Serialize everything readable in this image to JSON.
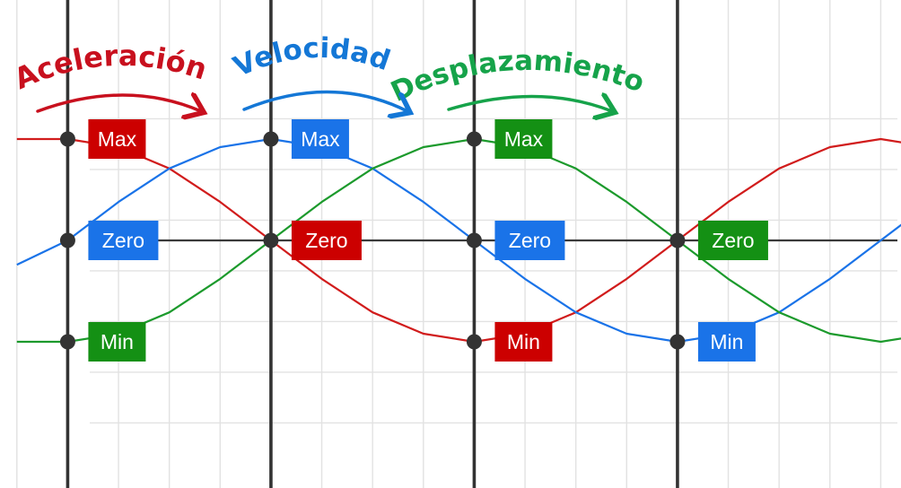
{
  "chart_data": {
    "type": "line",
    "title": "",
    "x_range": [
      0,
      6
    ],
    "y_range": [
      -1.8,
      1.4
    ],
    "grid": true,
    "headings": [
      {
        "text": "Aceleración",
        "color": "#c8101e"
      },
      {
        "text": "Velocidad",
        "color": "#1477d6"
      },
      {
        "text": "Desplazamiento",
        "color": "#16a34a"
      }
    ],
    "series": [
      {
        "key": "aceleracion",
        "color": "#d11c1c",
        "x": [
          0,
          0.25,
          0.5,
          0.75,
          1,
          1.25,
          1.5,
          1.75,
          2,
          2.25,
          2.5,
          2.75,
          3,
          3.25,
          3.5,
          3.75,
          4,
          4.25,
          4.5,
          4.75,
          5,
          5.25,
          5.5,
          5.75,
          6
        ],
        "y": [
          1,
          1,
          0.92,
          0.71,
          0.38,
          0,
          -0.38,
          -0.71,
          -0.92,
          -1,
          -0.92,
          -0.71,
          -0.38,
          0,
          0.38,
          0.71,
          0.92,
          1,
          0.92,
          0.71,
          0.38,
          0,
          -0.38,
          -0.71,
          -0.92
        ]
      },
      {
        "key": "velocidad",
        "color": "#1a73e8",
        "x": [
          0,
          0.25,
          0.5,
          0.75,
          1,
          1.25,
          1.5,
          1.75,
          2,
          2.25,
          2.5,
          2.75,
          3,
          3.25,
          3.5,
          3.75,
          4,
          4.25,
          4.5,
          4.75,
          5,
          5.25,
          5.5,
          5.75,
          6
        ],
        "y": [
          -0.24,
          0,
          0.38,
          0.71,
          0.92,
          1,
          0.92,
          0.71,
          0.38,
          0,
          -0.38,
          -0.71,
          -0.92,
          -1,
          -0.92,
          -0.71,
          -0.38,
          0,
          0.38,
          0.71,
          0.92,
          1,
          0.92,
          0.71,
          0.38
        ]
      },
      {
        "key": "desplazamiento",
        "color": "#1c9a2c",
        "x": [
          0,
          0.25,
          0.5,
          0.75,
          1,
          1.25,
          1.5,
          1.75,
          2,
          2.25,
          2.5,
          2.75,
          3,
          3.25,
          3.5,
          3.75,
          4,
          4.25,
          4.5,
          4.75,
          5,
          5.25,
          5.5,
          5.75,
          6
        ],
        "y": [
          -1,
          -1,
          -0.92,
          -0.71,
          -0.38,
          0,
          0.38,
          0.71,
          0.92,
          1,
          0.92,
          0.71,
          0.38,
          0,
          -0.38,
          -0.71,
          -0.92,
          -1,
          -0.92,
          -0.71,
          -0.38,
          0,
          0.38,
          0.71,
          0.92
        ]
      }
    ],
    "points": [
      {
        "x": 0.25,
        "y": 1
      },
      {
        "x": 0.25,
        "y": 0
      },
      {
        "x": 0.25,
        "y": -1
      },
      {
        "x": 1.25,
        "y": 1
      },
      {
        "x": 1.25,
        "y": 0
      },
      {
        "x": 2.25,
        "y": 1
      },
      {
        "x": 2.25,
        "y": 0
      },
      {
        "x": 2.25,
        "y": -1
      },
      {
        "x": 3.25,
        "y": 0
      },
      {
        "x": 3.25,
        "y": -1
      }
    ],
    "annotations": [
      {
        "text": "Max",
        "color": "#cc0000",
        "x": 0.25,
        "y": 1
      },
      {
        "text": "Zero",
        "color": "#1a73e8",
        "x": 0.25,
        "y": 0
      },
      {
        "text": "Min",
        "color": "#149014",
        "x": 0.25,
        "y": -1
      },
      {
        "text": "Max",
        "color": "#1a73e8",
        "x": 1.25,
        "y": 1
      },
      {
        "text": "Zero",
        "color": "#cc0000",
        "x": 1.25,
        "y": 0
      },
      {
        "text": "Max",
        "color": "#149014",
        "x": 2.25,
        "y": 1
      },
      {
        "text": "Zero",
        "color": "#1a73e8",
        "x": 2.25,
        "y": 0
      },
      {
        "text": "Min",
        "color": "#cc0000",
        "x": 2.25,
        "y": -1
      },
      {
        "text": "Zero",
        "color": "#149014",
        "x": 3.25,
        "y": 0
      },
      {
        "text": "Min",
        "color": "#1a73e8",
        "x": 3.25,
        "y": -1
      }
    ]
  }
}
